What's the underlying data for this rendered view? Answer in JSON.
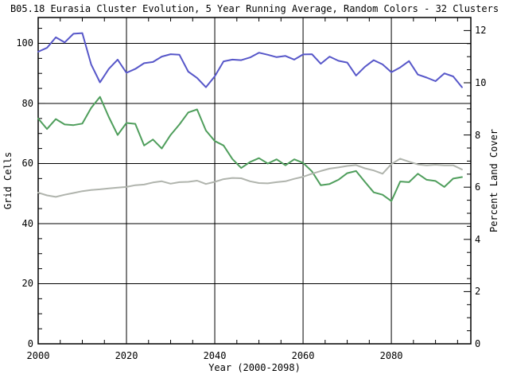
{
  "window": {
    "background": "#ffffff",
    "foreground": "#000000"
  },
  "chart_data": {
    "type": "line",
    "title": "B05.18 Eurasia Cluster Evolution, 5 Year Running Average, Random Colors - 32 Clusters",
    "xlabel": "Year (2000-2098)",
    "ylabel_left": "Grid Cells",
    "ylabel_right": "Percent Land Cover",
    "x_range": [
      2000,
      2098
    ],
    "ylim_left": [
      0,
      108.6
    ],
    "ylim_right": [
      0,
      12.5
    ],
    "grid": true,
    "legend": "none",
    "axis_color": "#000000",
    "x_major_ticks": [
      2000,
      2020,
      2040,
      2060,
      2080
    ],
    "x_tick_labels": [
      "2000",
      "2020",
      "2040",
      "2060",
      "2080"
    ],
    "x_minor_step": 5,
    "y_left_major_ticks": [
      0,
      20,
      40,
      60,
      80,
      100
    ],
    "y_left_tick_labels": [
      "0",
      "20",
      "40",
      "60",
      "80",
      "100"
    ],
    "y_left_minor_step": 5,
    "y_right_major_ticks": [
      0,
      2,
      4,
      6,
      8,
      10,
      12
    ],
    "y_right_tick_labels": [
      "0",
      "2",
      "4",
      "6",
      "8",
      "10",
      "12"
    ],
    "y_right_minor_step": 0.5,
    "x": [
      2000,
      2002,
      2004,
      2006,
      2008,
      2010,
      2012,
      2014,
      2016,
      2018,
      2020,
      2022,
      2024,
      2026,
      2028,
      2030,
      2032,
      2034,
      2036,
      2038,
      2040,
      2042,
      2044,
      2046,
      2048,
      2050,
      2052,
      2054,
      2056,
      2058,
      2060,
      2062,
      2064,
      2066,
      2068,
      2070,
      2072,
      2074,
      2076,
      2078,
      2080,
      2082,
      2084,
      2086,
      2088,
      2090,
      2092,
      2094,
      2096
    ],
    "series": [
      {
        "name": "cluster-blue",
        "axis": "left",
        "color": "#5757c9",
        "values": [
          97.2,
          98.5,
          102.0,
          100.3,
          103.2,
          103.4,
          93.0,
          87.0,
          91.5,
          94.6,
          90.2,
          91.5,
          93.4,
          93.8,
          95.6,
          96.4,
          96.2,
          90.6,
          88.5,
          85.4,
          89.0,
          94.0,
          94.6,
          94.4,
          95.3,
          96.9,
          96.2,
          95.4,
          95.8,
          94.6,
          96.3,
          96.4,
          93.2,
          95.6,
          94.2,
          93.6,
          89.3,
          92.2,
          94.4,
          93.0,
          90.4,
          92.0,
          94.1,
          89.6,
          88.6,
          87.4,
          90.0,
          89.0,
          85.4
        ]
      },
      {
        "name": "cluster-green",
        "axis": "left",
        "color": "#4f9e5c",
        "values": [
          75.0,
          71.5,
          74.8,
          73.0,
          72.8,
          73.3,
          78.5,
          82.2,
          75.5,
          69.5,
          73.5,
          73.2,
          66.0,
          68.0,
          65.0,
          69.5,
          73.0,
          77.0,
          78.0,
          71.0,
          67.5,
          66.0,
          61.5,
          58.5,
          60.5,
          61.8,
          60.0,
          61.4,
          59.4,
          61.4,
          60.2,
          57.4,
          52.8,
          53.2,
          54.6,
          56.8,
          57.5,
          53.9,
          50.4,
          49.6,
          47.5,
          54.0,
          53.8,
          56.6,
          54.6,
          54.2,
          52.2,
          55.0,
          55.5
        ]
      },
      {
        "name": "cluster-gray",
        "axis": "left",
        "color": "#b0b4ad",
        "values": [
          50.3,
          49.4,
          48.9,
          49.6,
          50.2,
          50.8,
          51.2,
          51.4,
          51.7,
          52.0,
          52.2,
          52.8,
          53.0,
          53.7,
          54.1,
          53.3,
          53.8,
          53.9,
          54.3,
          53.2,
          53.9,
          54.8,
          55.2,
          55.1,
          54.1,
          53.5,
          53.4,
          53.8,
          54.1,
          54.9,
          55.6,
          56.6,
          57.5,
          58.3,
          58.7,
          59.2,
          59.5,
          58.4,
          57.7,
          56.6,
          59.8,
          61.6,
          60.6,
          59.7,
          59.4,
          59.6,
          59.4,
          59.4,
          58.0
        ]
      }
    ]
  }
}
